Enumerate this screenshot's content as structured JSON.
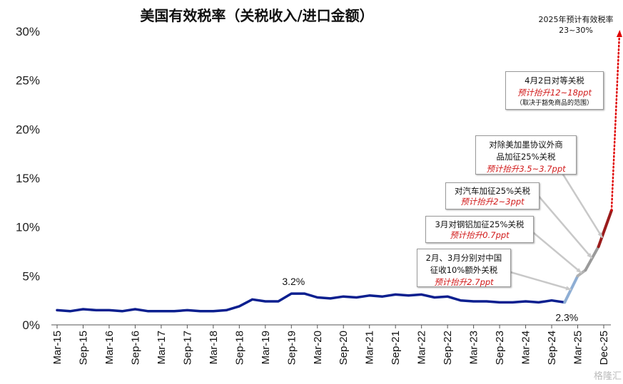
{
  "chart_data": {
    "type": "line",
    "title": "美国有效税率（关税收入/进口金额）",
    "ylim": [
      0,
      30
    ],
    "yticks": [
      "0%",
      "5%",
      "10%",
      "15%",
      "20%",
      "25%",
      "30%"
    ],
    "categories": [
      "Mar-15",
      "Sep-15",
      "Mar-16",
      "Sep-16",
      "Mar-17",
      "Sep-17",
      "Mar-18",
      "Sep-18",
      "Mar-19",
      "Sep-19",
      "Mar-20",
      "Sep-20",
      "Mar-21",
      "Sep-21",
      "Mar-22",
      "Sep-22",
      "Mar-23",
      "Sep-23",
      "Mar-24",
      "Sep-24",
      "Mar-25",
      "Dec-25"
    ],
    "series": [
      {
        "name": "",
        "color": "#0b1f8f",
        "x": [
          0,
          0.5,
          1,
          1.5,
          2,
          2.5,
          3,
          3.5,
          4,
          4.5,
          5,
          5.5,
          6,
          6.5,
          7,
          7.5,
          8,
          8.5,
          9,
          9.5,
          10,
          10.5,
          11,
          11.5,
          12,
          12.5,
          13,
          13.5,
          14,
          14.5,
          15,
          15.5,
          16,
          16.5,
          17,
          17.5,
          18,
          18.5,
          19,
          19.5
        ],
        "values": [
          1.5,
          1.4,
          1.6,
          1.5,
          1.5,
          1.4,
          1.6,
          1.4,
          1.4,
          1.4,
          1.5,
          1.4,
          1.4,
          1.5,
          1.9,
          2.6,
          2.4,
          2.4,
          3.2,
          3.2,
          2.8,
          2.7,
          2.9,
          2.8,
          3.0,
          2.9,
          3.1,
          3.0,
          3.1,
          2.8,
          2.9,
          2.5,
          2.4,
          2.4,
          2.3,
          2.3,
          2.4,
          2.3,
          2.5,
          2.3
        ]
      }
    ],
    "projection_segments": [
      {
        "x": [
          19.5,
          20
        ],
        "values": [
          2.3,
          5.0
        ],
        "color": "#8eaed4"
      },
      {
        "x": [
          20,
          20.3
        ],
        "values": [
          5.0,
          5.6
        ],
        "color": "#b0b0b0"
      },
      {
        "x": [
          20.3,
          20.8
        ],
        "values": [
          5.6,
          8.0
        ],
        "color": "#9a9a9a"
      },
      {
        "x": [
          20.8,
          21.3
        ],
        "values": [
          8.0,
          11.7
        ],
        "color": "#9b1c1c"
      }
    ],
    "target_range": {
      "from": 11.7,
      "to": 30,
      "color": "#e00000"
    },
    "data_labels": [
      {
        "text": "3.2%",
        "x": 9,
        "value": 3.2
      },
      {
        "text": "2.3%",
        "x": 19.5,
        "value": 2.3
      }
    ],
    "annotations": [
      {
        "line1": "2025年预计有效税率",
        "line2": "23~30%"
      },
      {
        "line1": "4月2日对等关税",
        "red": "预计抬升12~18ppt",
        "small": "（取决于豁免商品的范围）"
      },
      {
        "line1": "对除美加墨协议外商",
        "line2": "品加征25%关税",
        "red": "预计抬升3.5~3.7ppt"
      },
      {
        "line1": "对汽车加征25%关税",
        "red": "预计抬升2~3ppt"
      },
      {
        "line1": "3月对钢铝加征25%关税",
        "red": "预计抬升0.7ppt"
      },
      {
        "line1": "2月、3月分别对中国",
        "line2": "征收10%额外关税",
        "red": "预计抬升2.7ppt"
      }
    ],
    "grid": false,
    "legend": "none"
  },
  "watermark": "格隆汇"
}
